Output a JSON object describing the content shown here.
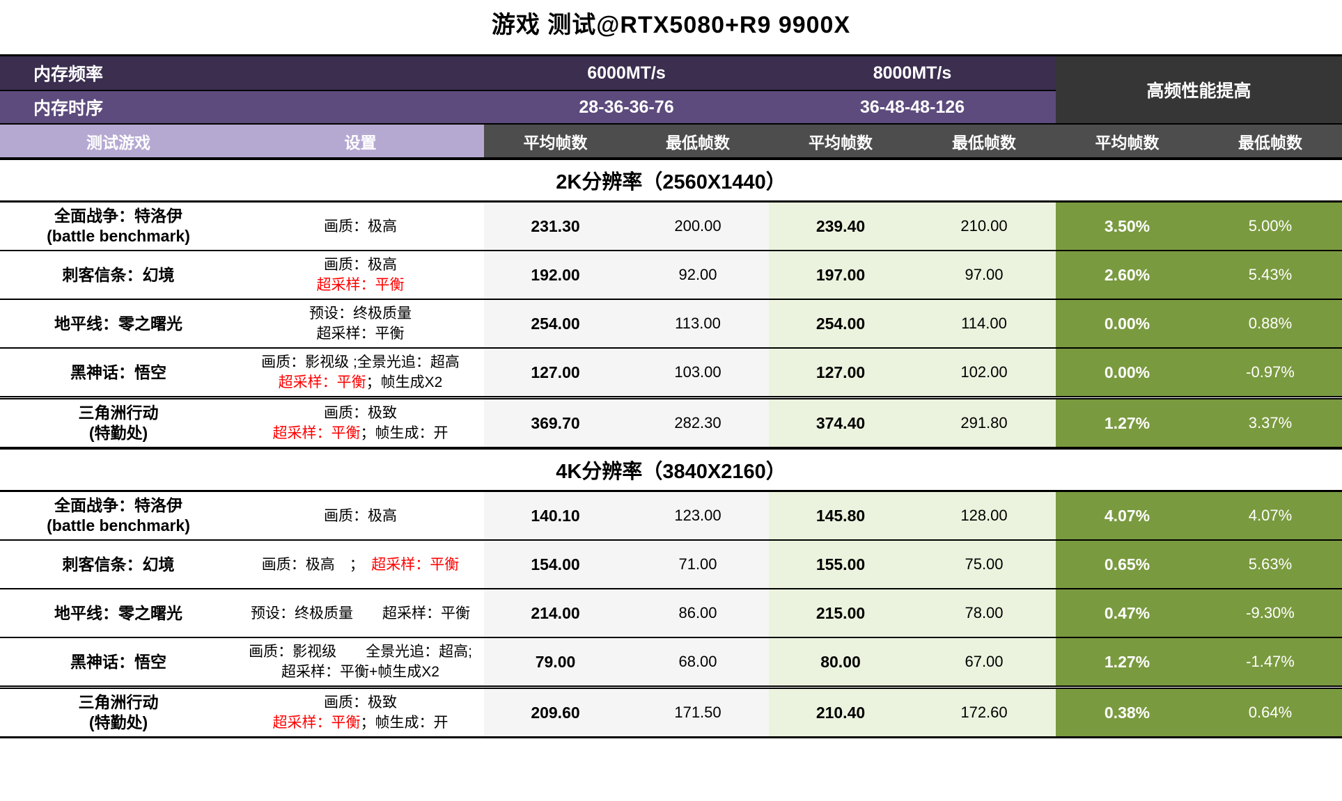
{
  "title": "游戏 测试@RTX5080+R9 9900X",
  "header": {
    "row1_label": "内存频率",
    "freq1": "6000MT/s",
    "freq2": "8000MT/s",
    "row2_label": "内存时序",
    "timing1": "28-36-36-76",
    "timing2": "36-48-48-126",
    "gain_label": "高频性能提高",
    "col_game": "测试游戏",
    "col_settings": "设置",
    "col_avg": "平均帧数",
    "col_min": "最低帧数"
  },
  "colors": {
    "purple_dark": "#3B2E4F",
    "purple_mid": "#5D4B7D",
    "lavender": "#B5A9D2",
    "header_gray": "#4D4D4D",
    "gain_header_dark": "#363636",
    "col_6000_bg": "#F5F5F5",
    "col_8000_bg": "#EBF3DE",
    "gain_olive": "#7A9A3F",
    "settings_red": "#FF0000"
  },
  "sections": [
    {
      "title": "2K分辨率（2560X1440）",
      "rows": [
        {
          "game": [
            "全面战争：特洛伊",
            "(battle benchmark)"
          ],
          "settings": [
            [
              {
                "t": "画质：极高",
                "red": false
              }
            ]
          ],
          "values": {
            "avg6000": "231.30",
            "min6000": "200.00",
            "avg8000": "239.40",
            "min8000": "210.00",
            "avg_gain": "3.50%",
            "min_gain": "5.00%"
          }
        },
        {
          "game": [
            "刺客信条：幻境"
          ],
          "settings": [
            [
              {
                "t": "画质：极高",
                "red": false
              }
            ],
            [
              {
                "t": "超采样：平衡",
                "red": true
              }
            ]
          ],
          "values": {
            "avg6000": "192.00",
            "min6000": "92.00",
            "avg8000": "197.00",
            "min8000": "97.00",
            "avg_gain": "2.60%",
            "min_gain": "5.43%"
          }
        },
        {
          "game": [
            "地平线：零之曙光"
          ],
          "settings": [
            [
              {
                "t": "预设：终极质量",
                "red": false
              }
            ],
            [
              {
                "t": "超采样：平衡",
                "red": false
              }
            ]
          ],
          "values": {
            "avg6000": "254.00",
            "min6000": "113.00",
            "avg8000": "254.00",
            "min8000": "114.00",
            "avg_gain": "0.00%",
            "min_gain": "0.88%"
          }
        },
        {
          "game": [
            "黑神话：悟空"
          ],
          "settings": [
            [
              {
                "t": "画质：影视级 ;全景光追：超高",
                "red": false
              }
            ],
            [
              {
                "t": "超采样：平衡",
                "red": true
              },
              {
                "t": "；帧生成X2",
                "red": false
              }
            ]
          ],
          "values": {
            "avg6000": "127.00",
            "min6000": "103.00",
            "avg8000": "127.00",
            "min8000": "102.00",
            "avg_gain": "0.00%",
            "min_gain": "-0.97%"
          }
        },
        {
          "game": [
            "三角洲行动",
            "(特勤处)"
          ],
          "settings": [
            [
              {
                "t": "画质：极致",
                "red": false
              }
            ],
            [
              {
                "t": "超采样：平衡",
                "red": true
              },
              {
                "t": "；帧生成：开",
                "red": false
              }
            ]
          ],
          "values": {
            "avg6000": "369.70",
            "min6000": "282.30",
            "avg8000": "374.40",
            "min8000": "291.80",
            "avg_gain": "1.27%",
            "min_gain": "3.37%"
          }
        }
      ]
    },
    {
      "title": "4K分辨率（3840X2160）",
      "rows": [
        {
          "game": [
            "全面战争：特洛伊",
            "(battle benchmark)"
          ],
          "settings": [
            [
              {
                "t": "画质：极高",
                "red": false
              }
            ]
          ],
          "values": {
            "avg6000": "140.10",
            "min6000": "123.00",
            "avg8000": "145.80",
            "min8000": "128.00",
            "avg_gain": "4.07%",
            "min_gain": "4.07%"
          }
        },
        {
          "game": [
            "刺客信条：幻境"
          ],
          "settings": [
            [
              {
                "t": "画质：极高　；　",
                "red": false
              },
              {
                "t": "超采样：平衡",
                "red": true
              }
            ]
          ],
          "values": {
            "avg6000": "154.00",
            "min6000": "71.00",
            "avg8000": "155.00",
            "min8000": "75.00",
            "avg_gain": "0.65%",
            "min_gain": "5.63%"
          }
        },
        {
          "game": [
            "地平线：零之曙光"
          ],
          "settings": [
            [
              {
                "t": "预设：终极质量　　超采样：平衡",
                "red": false
              }
            ]
          ],
          "values": {
            "avg6000": "214.00",
            "min6000": "86.00",
            "avg8000": "215.00",
            "min8000": "78.00",
            "avg_gain": "0.47%",
            "min_gain": "-9.30%"
          }
        },
        {
          "game": [
            "黑神话：悟空"
          ],
          "settings": [
            [
              {
                "t": "画质：影视级　　全景光追：超高;",
                "red": false
              }
            ],
            [
              {
                "t": "超采样：平衡+帧生成X2",
                "red": false
              }
            ]
          ],
          "values": {
            "avg6000": "79.00",
            "min6000": "68.00",
            "avg8000": "80.00",
            "min8000": "67.00",
            "avg_gain": "1.27%",
            "min_gain": "-1.47%"
          }
        },
        {
          "game": [
            "三角洲行动",
            "(特勤处)"
          ],
          "settings": [
            [
              {
                "t": "画质：极致",
                "red": false
              }
            ],
            [
              {
                "t": "超采样：平衡",
                "red": true
              },
              {
                "t": "；帧生成：开",
                "red": false
              }
            ]
          ],
          "values": {
            "avg6000": "209.60",
            "min6000": "171.50",
            "avg8000": "210.40",
            "min8000": "172.60",
            "avg_gain": "0.38%",
            "min_gain": "0.64%"
          }
        }
      ]
    }
  ],
  "chart_data": {
    "type": "table",
    "title": "游戏 测试@RTX5080+R9 9900X",
    "column_groups": [
      "6000MT/s (28-36-36-76)",
      "8000MT/s (36-48-48-126)",
      "高频性能提高"
    ],
    "columns": [
      "测试游戏",
      "设置",
      "6000平均帧数",
      "6000最低帧数",
      "8000平均帧数",
      "8000最低帧数",
      "提高平均帧数",
      "提高最低帧数"
    ],
    "sections": [
      {
        "name": "2K分辨率（2560X1440）",
        "rows": [
          [
            "全面战争：特洛伊 (battle benchmark)",
            "画质：极高",
            231.3,
            200.0,
            239.4,
            210.0,
            "3.50%",
            "5.00%"
          ],
          [
            "刺客信条：幻境",
            "画质：极高 超采样：平衡",
            192.0,
            92.0,
            197.0,
            97.0,
            "2.60%",
            "5.43%"
          ],
          [
            "地平线：零之曙光",
            "预设：终极质量 超采样：平衡",
            254.0,
            113.0,
            254.0,
            114.0,
            "0.00%",
            "0.88%"
          ],
          [
            "黑神话：悟空",
            "画质：影视级 ;全景光追：超高 超采样：平衡；帧生成X2",
            127.0,
            103.0,
            127.0,
            102.0,
            "0.00%",
            "-0.97%"
          ],
          [
            "三角洲行动 (特勤处)",
            "画质：极致 超采样：平衡；帧生成：开",
            369.7,
            282.3,
            374.4,
            291.8,
            "1.27%",
            "3.37%"
          ]
        ]
      },
      {
        "name": "4K分辨率（3840X2160）",
        "rows": [
          [
            "全面战争：特洛伊 (battle benchmark)",
            "画质：极高",
            140.1,
            123.0,
            145.8,
            128.0,
            "4.07%",
            "4.07%"
          ],
          [
            "刺客信条：幻境",
            "画质：极高 ； 超采样：平衡",
            154.0,
            71.0,
            155.0,
            75.0,
            "0.65%",
            "5.63%"
          ],
          [
            "地平线：零之曙光",
            "预设：终极质量 超采样：平衡",
            214.0,
            86.0,
            215.0,
            78.0,
            "0.47%",
            "-9.30%"
          ],
          [
            "黑神话：悟空",
            "画质：影视级 全景光追：超高; 超采样：平衡+帧生成X2",
            79.0,
            68.0,
            80.0,
            67.0,
            "1.27%",
            "-1.47%"
          ],
          [
            "三角洲行动 (特勤处)",
            "画质：极致 超采样：平衡；帧生成：开",
            209.6,
            171.5,
            210.4,
            172.6,
            "0.38%",
            "0.64%"
          ]
        ]
      }
    ]
  }
}
